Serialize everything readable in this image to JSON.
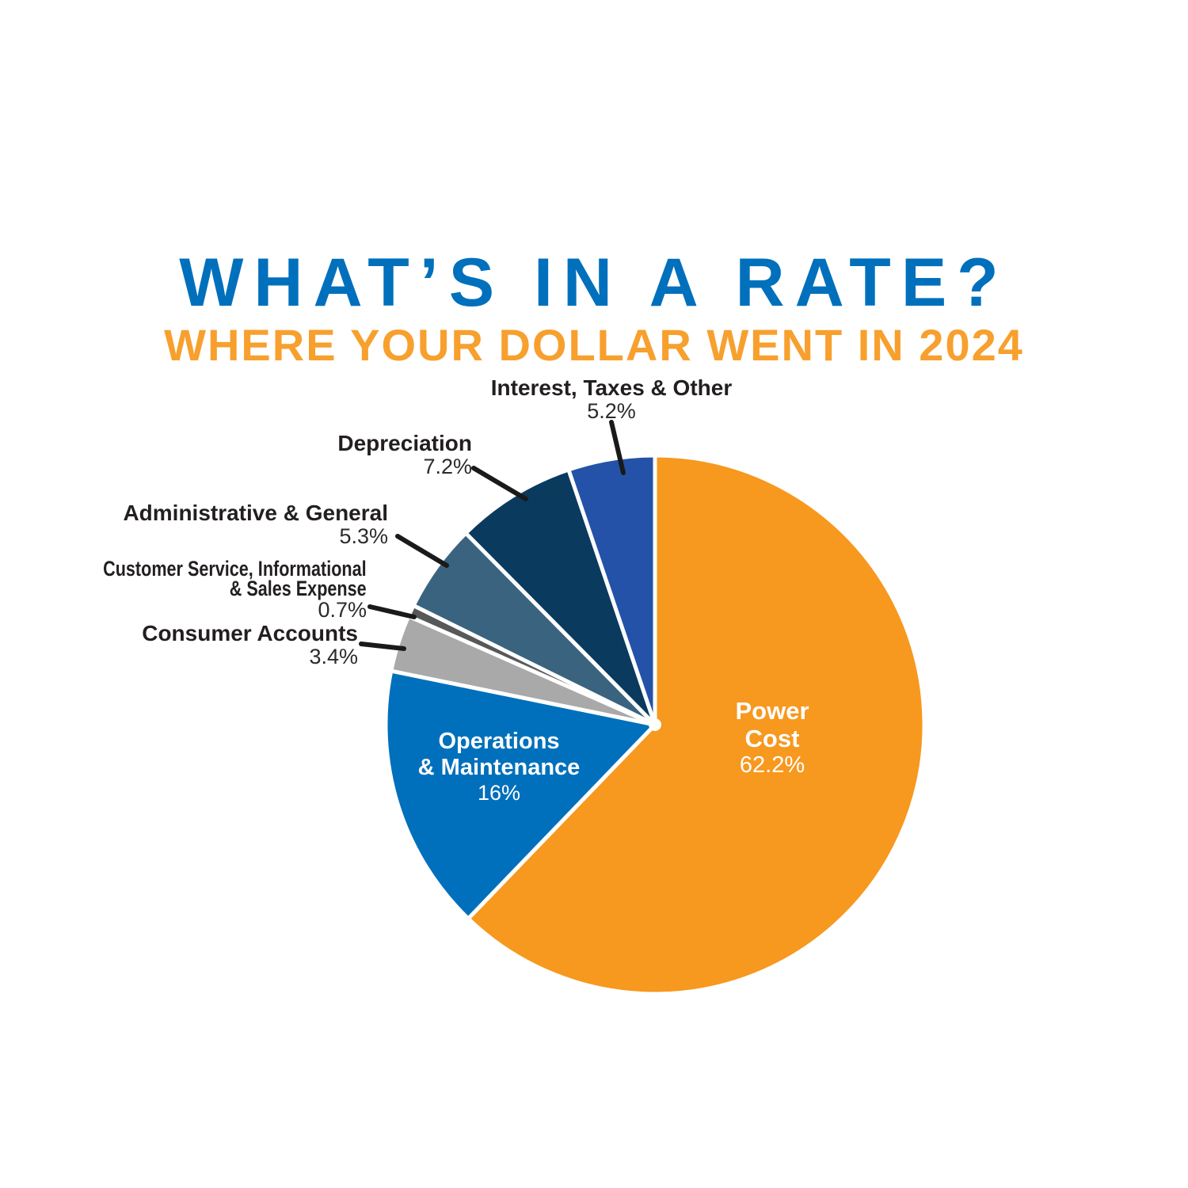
{
  "header": {
    "title": "WHAT’S IN A RATE?",
    "subtitle": "WHERE YOUR DOLLAR WENT IN 2024",
    "title_color": "#0070BC",
    "subtitle_color": "#F7A02E"
  },
  "colors": {
    "label_text": "#231F20",
    "leader_line": "#1A1A1A",
    "slice_separator": "#FFFFFF",
    "inside_label_text": "#FFFFFF"
  },
  "chart_data": {
    "type": "pie",
    "title": "WHAT’S IN A RATE?",
    "subtitle": "WHERE YOUR DOLLAR WENT IN 2024",
    "start_angle_deg": 0,
    "direction": "clockwise",
    "legend": "none",
    "slices": [
      {
        "label": "Power Cost",
        "label_lines": [
          "Power",
          "Cost"
        ],
        "value": 62.2,
        "percent_label": "62.2%",
        "color": "#F7981F",
        "label_position": "inside"
      },
      {
        "label": "Operations & Maintenance",
        "label_lines": [
          "Operations",
          "& Maintenance"
        ],
        "value": 16,
        "percent_label": "16%",
        "color": "#0070BC",
        "label_position": "inside"
      },
      {
        "label": "Consumer Accounts",
        "label_lines": [
          "Consumer Accounts"
        ],
        "value": 3.4,
        "percent_label": "3.4%",
        "color": "#A9A9A9",
        "label_position": "outside"
      },
      {
        "label": "Customer Service, Informational & Sales Expense",
        "label_lines": [
          "Customer Service, Informational",
          "& Sales Expense"
        ],
        "value": 0.7,
        "percent_label": "0.7%",
        "color": "#57585A",
        "label_position": "outside"
      },
      {
        "label": "Administrative & General",
        "label_lines": [
          "Administrative & General"
        ],
        "value": 5.3,
        "percent_label": "5.3%",
        "color": "#3A6380",
        "label_position": "outside"
      },
      {
        "label": "Depreciation",
        "label_lines": [
          "Depreciation"
        ],
        "value": 7.2,
        "percent_label": "7.2%",
        "color": "#0A3A5D",
        "label_position": "outside"
      },
      {
        "label": "Interest, Taxes & Other",
        "label_lines": [
          "Interest, Taxes & Other"
        ],
        "value": 5.2,
        "percent_label": "5.2%",
        "color": "#2452A8",
        "label_position": "outside"
      }
    ]
  }
}
